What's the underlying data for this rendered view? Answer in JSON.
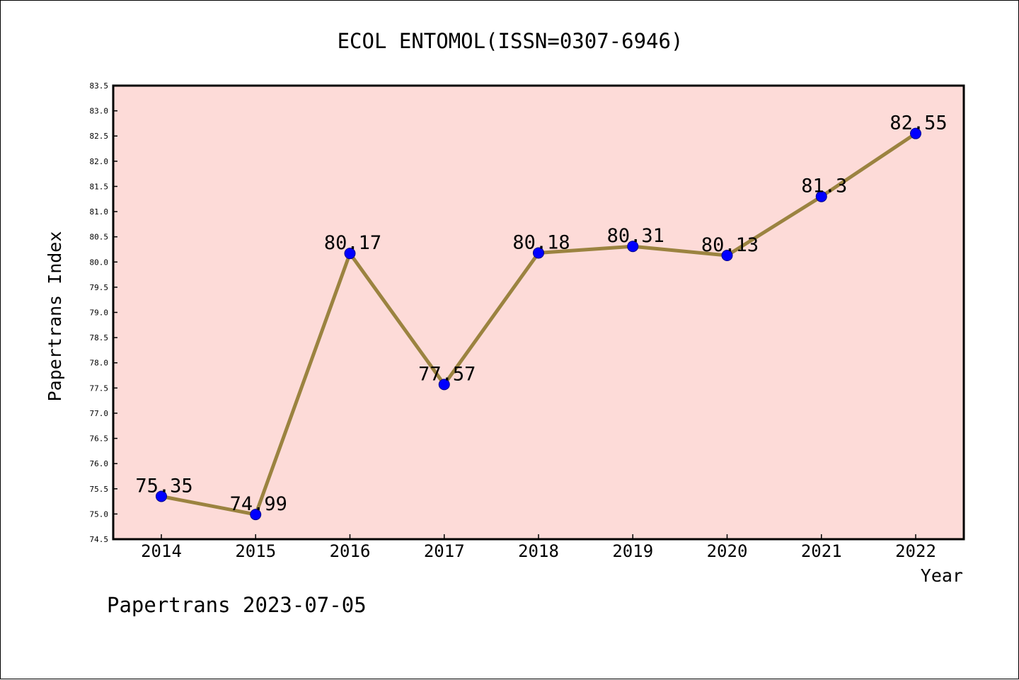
{
  "chart_data": {
    "type": "line",
    "title": "ECOL ENTOMOL(ISSN=0307-6946)",
    "xlabel": "Year",
    "ylabel": "Papertrans Index",
    "footer": "Papertrans 2023-07-05",
    "ylim": [
      74.5,
      83.5
    ],
    "yticks": [
      "74.5",
      "75.0",
      "75.5",
      "76.0",
      "76.5",
      "77.0",
      "77.5",
      "78.0",
      "78.5",
      "79.0",
      "79.5",
      "80.0",
      "80.5",
      "81.0",
      "81.5",
      "82.0",
      "82.5",
      "83.0",
      "83.5"
    ],
    "categories": [
      "2014",
      "2015",
      "2016",
      "2017",
      "2018",
      "2019",
      "2020",
      "2021",
      "2022"
    ],
    "values": [
      75.35,
      74.99,
      80.17,
      77.57,
      80.18,
      80.31,
      80.13,
      81.3,
      82.55
    ],
    "value_labels": [
      "75.35",
      "74.99",
      "80.17",
      "77.57",
      "80.18",
      "80.31",
      "80.13",
      "81.3",
      "82.55"
    ],
    "grid": false,
    "colors": {
      "plot_background": "#fddbd8",
      "line": "#9b8340",
      "marker": "#0000ff",
      "marker_edge": "#00008b"
    }
  }
}
